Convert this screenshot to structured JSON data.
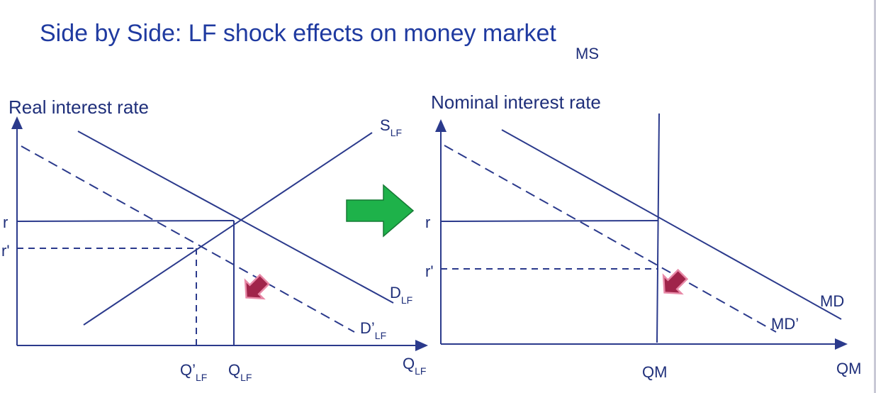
{
  "title": "Side by Side: LF shock effects on money market",
  "left": {
    "ylabel": "Real interest rate",
    "supply": "S",
    "supply_sub": "LF",
    "demand": "D",
    "demand_sub": "LF",
    "demand2": "D’",
    "demand2_sub": "LF",
    "xaxis": "Q",
    "xaxis_sub": "LF",
    "q_label": "Q",
    "q_sub": "LF",
    "q2_label": "Q’",
    "q2_sub": "LF",
    "r": "r",
    "r2": "r'"
  },
  "right": {
    "ylabel": "Nominal interest rate",
    "ms": "MS",
    "md": "MD",
    "md2": "MD’",
    "qm": "QM",
    "xaxis": "QM",
    "r": "r",
    "r2": "r'"
  },
  "colors": {
    "title": "#1f3aa0",
    "lines": "#2b3a8c",
    "right_arrow": "#1eb24a",
    "shift_arrow": "#a0244a"
  },
  "icons": [
    "green-right-arrow",
    "shift-arrow"
  ]
}
